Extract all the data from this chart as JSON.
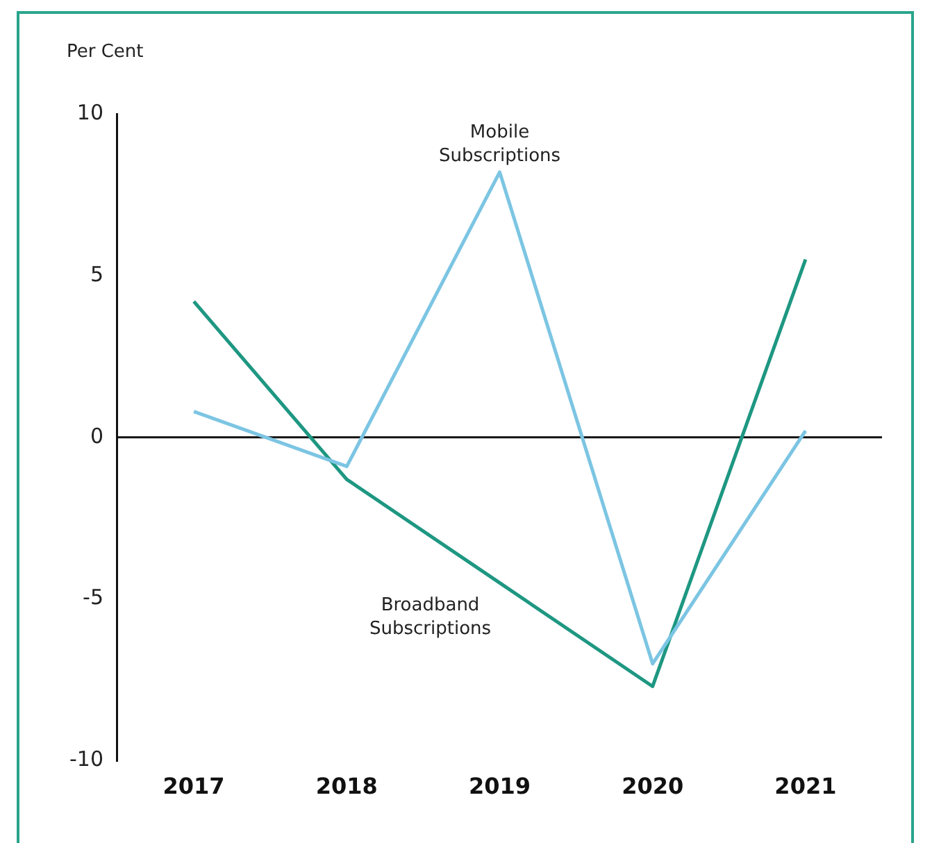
{
  "chart_data": {
    "type": "line",
    "ylabel": "Per Cent",
    "categories": [
      "2017",
      "2018",
      "2019",
      "2020",
      "2021"
    ],
    "series": [
      {
        "name": "Mobile Subscriptions",
        "color": "#7cc5e3",
        "values": [
          0.8,
          -0.9,
          8.2,
          -7.0,
          0.2
        ]
      },
      {
        "name": "Broadband Subscriptions",
        "color": "#1e9782",
        "values": [
          4.2,
          -1.3,
          -4.5,
          -7.7,
          5.5
        ]
      }
    ],
    "ylim": [
      -10,
      10
    ],
    "yticks": [
      -10,
      -5,
      0,
      5,
      10
    ],
    "ref_lines": [
      {
        "axis": "y",
        "value": 0,
        "color": "#111111"
      }
    ],
    "grid": false,
    "legend": false,
    "marker": "none",
    "line_style": "solid"
  }
}
